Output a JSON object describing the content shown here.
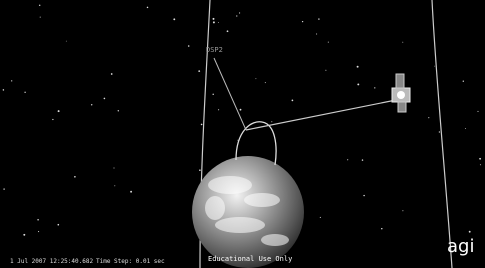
{
  "scene": {
    "object_label": "DSP2",
    "timestamp": "1 Jul 2007 12:25:40.682",
    "time_step": "Time Step: 0.01 sec",
    "watermark": "Educational Use Only",
    "logo": "agi"
  }
}
